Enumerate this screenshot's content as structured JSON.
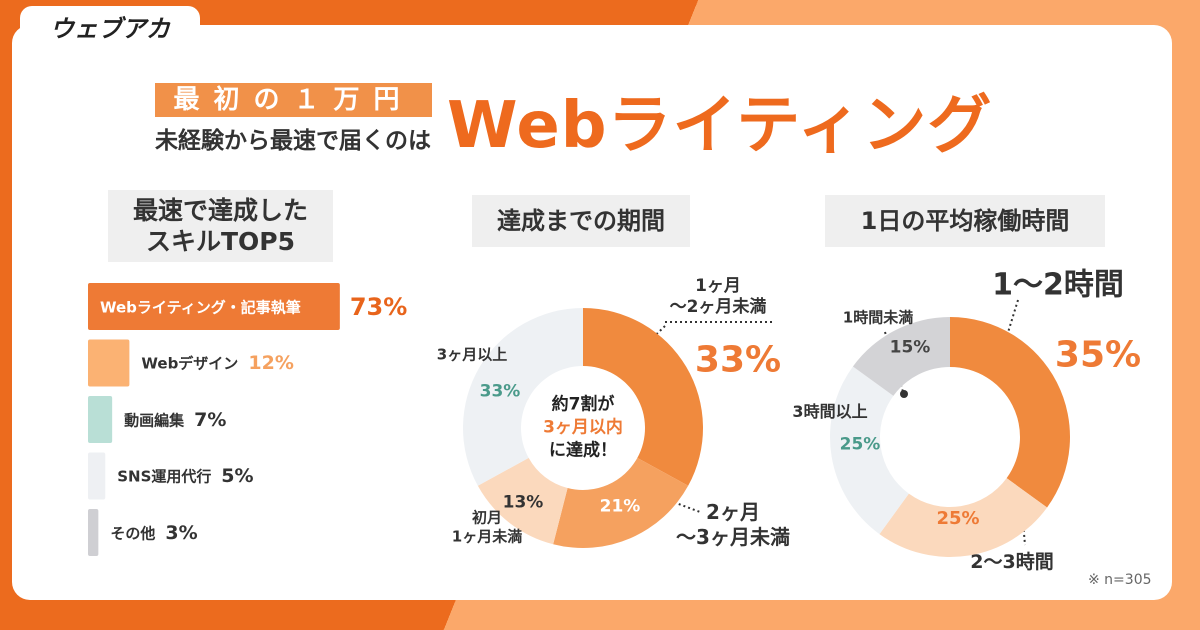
{
  "logo": "ウェブアカ",
  "header": {
    "badge": "最初の１万円",
    "subtitle": "未経験から最速で届くのは",
    "title": "Webライティング"
  },
  "chart_data": [
    {
      "type": "hbar",
      "title": "最速で達成した\nスキルTOP5",
      "categories": [
        "Webライティング・記事執筆",
        "Webデザイン",
        "動画編集",
        "SNS運用代行",
        "その他"
      ],
      "values": [
        73,
        12,
        7,
        5,
        3
      ],
      "value_labels": [
        "73%",
        "12%",
        "7%",
        "5%",
        "3%"
      ],
      "colors": [
        "#ee7a35",
        "#fbb273",
        "#b9dfd6",
        "#eef0f3",
        "#cfcfd3"
      ],
      "value_label_colors": [
        "#e8641b",
        "#f5a15f",
        "#333333",
        "#333333",
        "#333333"
      ]
    },
    {
      "type": "donut",
      "title": "達成までの期間",
      "categories": [
        "1ヶ月\n〜2ヶ月未満",
        "2ヶ月\n〜3ヶ月未満",
        "初月\n1ヶ月未満",
        "3ヶ月以上"
      ],
      "values": [
        33,
        21,
        13,
        33
      ],
      "value_labels": [
        "33%",
        "21%",
        "13%",
        "33%"
      ],
      "colors": [
        "#f08a3e",
        "#f5a15f",
        "#fbd9bd",
        "#eef1f4"
      ],
      "value_label_colors": [
        "#ee7a35",
        "#ffffff",
        "#333333",
        "#4a9a8a"
      ],
      "center_text": [
        "約7割が",
        "3ヶ月以内",
        "に達成！"
      ]
    },
    {
      "type": "donut",
      "title": "1日の平均稼働時間",
      "categories": [
        "1〜2時間",
        "2〜3時間",
        "3時間以上",
        "1時間未満"
      ],
      "values": [
        35,
        25,
        25,
        15
      ],
      "value_labels": [
        "35%",
        "25%",
        "25%",
        "15%"
      ],
      "colors": [
        "#f08a3e",
        "#fbd9bd",
        "#eef1f4",
        "#d3d3d6"
      ],
      "value_label_colors": [
        "#ee7a35",
        "#ee7a35",
        "#4a9a8a",
        "#444444"
      ]
    }
  ],
  "note": "※ n=305"
}
